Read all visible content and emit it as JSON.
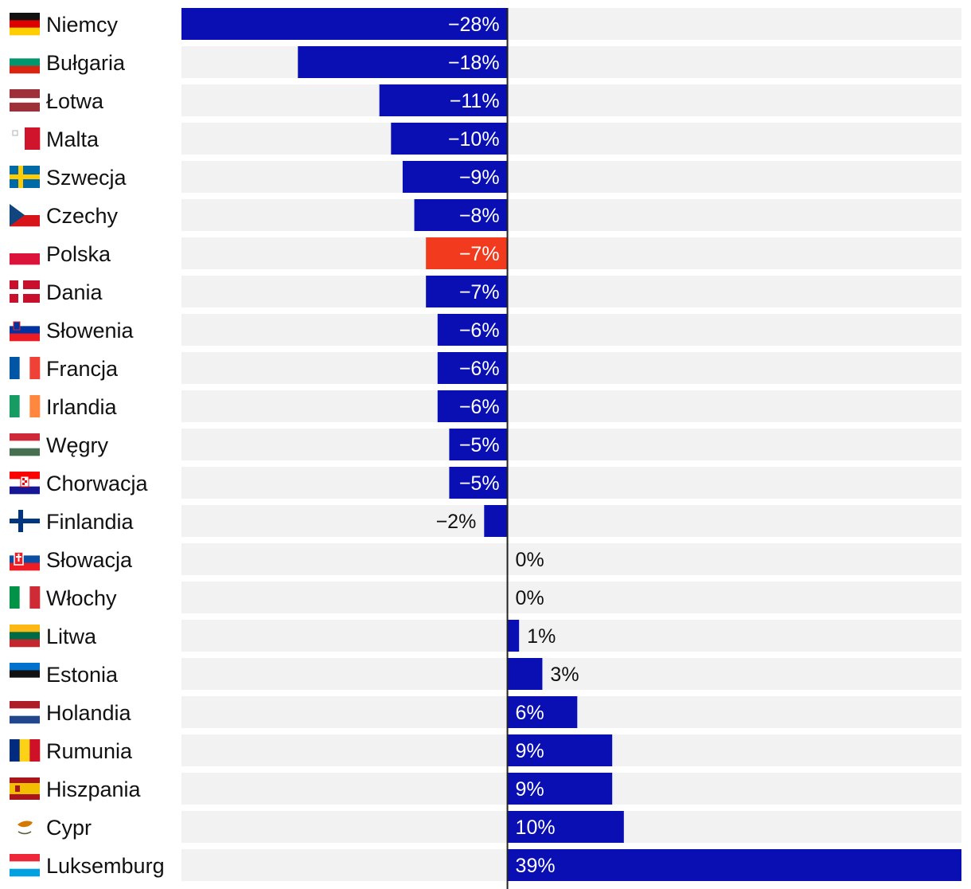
{
  "chart_data": {
    "type": "bar",
    "orientation": "horizontal",
    "categories": [
      "Niemcy",
      "Bułgaria",
      "Łotwa",
      "Malta",
      "Szwecja",
      "Czechy",
      "Polska",
      "Dania",
      "Słowenia",
      "Francja",
      "Irlandia",
      "Węgry",
      "Chorwacja",
      "Finlandia",
      "Słowacja",
      "Włochy",
      "Litwa",
      "Estonia",
      "Holandia",
      "Rumunia",
      "Hiszpania",
      "Cypr",
      "Luksemburg"
    ],
    "values": [
      -28,
      -18,
      -11,
      -10,
      -9,
      -8,
      -7,
      -7,
      -6,
      -6,
      -6,
      -5,
      -5,
      -2,
      0,
      0,
      1,
      3,
      6,
      9,
      9,
      10,
      39
    ],
    "value_labels": [
      "−28%",
      "−18%",
      "−11%",
      "−10%",
      "−9%",
      "−8%",
      "−7%",
      "−7%",
      "−6%",
      "−6%",
      "−6%",
      "−5%",
      "−5%",
      "−2%",
      "0%",
      "0%",
      "1%",
      "3%",
      "6%",
      "9%",
      "9%",
      "10%",
      "39%"
    ],
    "flags": [
      "de",
      "bg",
      "lv",
      "mt",
      "se",
      "cz",
      "pl",
      "dk",
      "si",
      "fr",
      "ie",
      "hu",
      "hr",
      "fi",
      "sk",
      "it",
      "lt",
      "ee",
      "nl",
      "ro",
      "es",
      "cy",
      "lu"
    ],
    "highlight": "Polska",
    "xlim": [
      -28,
      39
    ],
    "unit": "%",
    "title": "",
    "xlabel": "",
    "ylabel": "",
    "colors": {
      "bar": "#0a0fb4",
      "highlight": "#f23a1e",
      "track": "#f2f2f2",
      "axis": "#222222",
      "label_inside": "#ffffff",
      "label_outside": "#111111"
    }
  }
}
